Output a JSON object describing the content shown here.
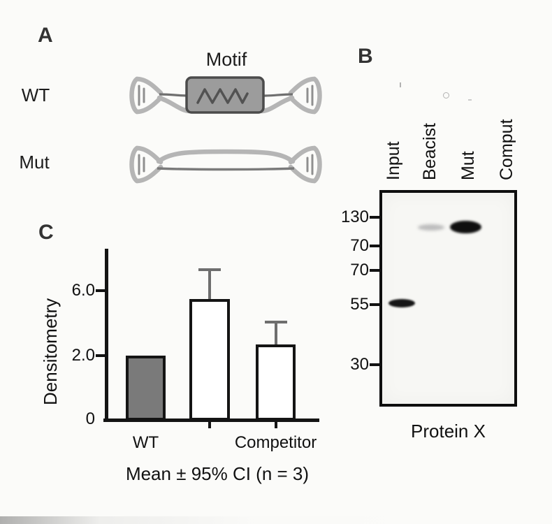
{
  "panel_a": {
    "label": "A",
    "motif_label": "Motif",
    "wt_label": "WT",
    "mut_label": "Mut"
  },
  "panel_b": {
    "label": "B",
    "lanes": [
      "Input",
      "Beacist",
      "Mut",
      "Comput"
    ],
    "markers": [
      "130",
      "70",
      "70",
      "55",
      "30"
    ],
    "bands": [
      {
        "lane": "Input",
        "position": "at 55 marker",
        "intensity": "strong"
      },
      {
        "lane": "Beacist",
        "position": "between 130 and 70 markers",
        "intensity": "faint"
      },
      {
        "lane": "Mut",
        "position": "between 130 and 70 markers",
        "intensity": "strong"
      }
    ],
    "blot_label": "Protein X"
  },
  "panel_c": {
    "label": "C"
  },
  "chart_data": {
    "type": "bar",
    "title": "",
    "xlabel": "",
    "ylabel": "Densitometry",
    "categories": [
      "WT",
      "",
      "Competitor"
    ],
    "values": [
      2.0,
      5.5,
      2.7
    ],
    "errors_upper": [
      0,
      1.8,
      1.4
    ],
    "yticks": [
      "0",
      "2.0",
      "6.0"
    ],
    "ylim": [
      0,
      8
    ],
    "grid": false,
    "legend": "none",
    "bar_fills": [
      "#7a7a7a",
      "#ffffff",
      "#ffffff"
    ],
    "error_color": "#6e6e6e",
    "caption": "Mean ± 95% CI (n = 3)"
  }
}
